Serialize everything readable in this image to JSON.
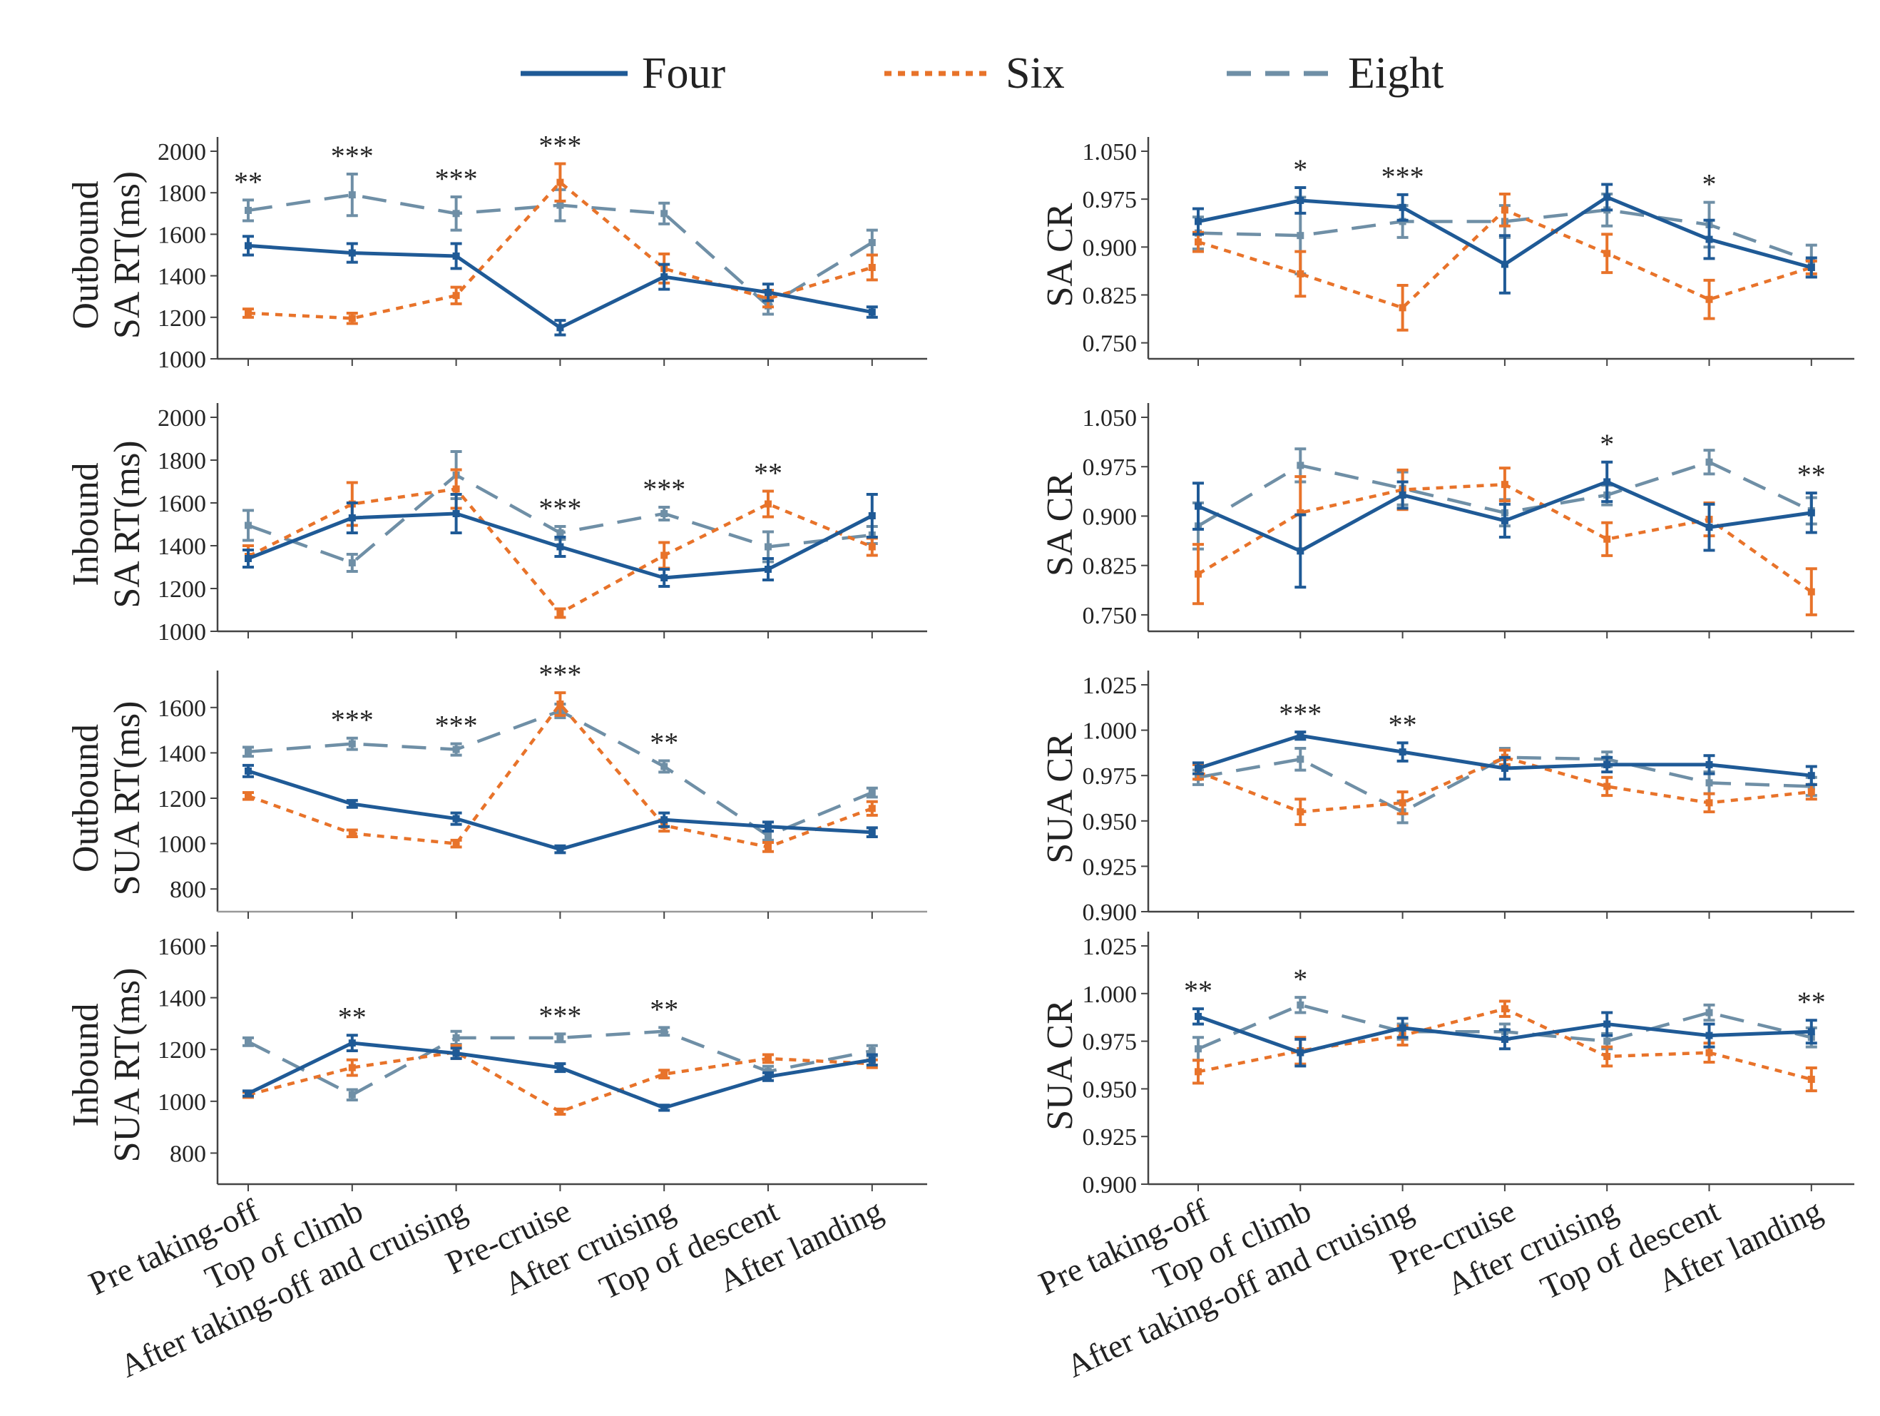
{
  "legend": [
    {
      "name": "Four",
      "color": "#1f5a96",
      "style": "solid"
    },
    {
      "name": "Six",
      "color": "#e8732a",
      "style": "dotted"
    },
    {
      "name": "Eight",
      "color": "#6f8fa6",
      "style": "dashed"
    }
  ],
  "categories": [
    "Pre taking-off",
    "Top of climb",
    "After taking-off and cruising",
    "Pre-cruise",
    "After cruising",
    "Top of descent",
    "After landing"
  ],
  "chart_data": [
    {
      "type": "line",
      "panel": "left-1",
      "ylabel": [
        "Outbound",
        "SA RT(ms)"
      ],
      "ylim": [
        1000,
        2000
      ],
      "yticks": [
        1000,
        1200,
        1400,
        1600,
        1800,
        2000
      ],
      "tick_decimals": 0,
      "series": [
        {
          "name": "Four",
          "values": [
            1545,
            1510,
            1495,
            1150,
            1395,
            1320,
            1225
          ],
          "errors": [
            45,
            45,
            60,
            35,
            60,
            40,
            25
          ]
        },
        {
          "name": "Six",
          "values": [
            1220,
            1195,
            1305,
            1850,
            1435,
            1290,
            1440
          ],
          "errors": [
            20,
            25,
            40,
            90,
            70,
            40,
            60
          ]
        },
        {
          "name": "Eight",
          "values": [
            1715,
            1790,
            1700,
            1740,
            1700,
            1255,
            1560
          ],
          "errors": [
            50,
            100,
            80,
            75,
            50,
            40,
            60
          ]
        }
      ],
      "significance": [
        "**",
        "***",
        "***",
        "***",
        "",
        "",
        ""
      ]
    },
    {
      "type": "line",
      "panel": "left-2",
      "ylabel": [
        "Inbound",
        "SA RT(ms)"
      ],
      "ylim": [
        1000,
        2000
      ],
      "yticks": [
        1000,
        1200,
        1400,
        1600,
        1800,
        2000
      ],
      "tick_decimals": 0,
      "series": [
        {
          "name": "Four",
          "values": [
            1340,
            1530,
            1550,
            1395,
            1250,
            1290,
            1540
          ],
          "errors": [
            40,
            70,
            90,
            45,
            40,
            50,
            100
          ]
        },
        {
          "name": "Six",
          "values": [
            1350,
            1595,
            1665,
            1085,
            1355,
            1595,
            1395
          ],
          "errors": [
            50,
            100,
            90,
            20,
            60,
            60,
            40
          ]
        },
        {
          "name": "Eight",
          "values": [
            1495,
            1320,
            1730,
            1460,
            1550,
            1395,
            1450
          ],
          "errors": [
            70,
            40,
            110,
            30,
            30,
            70,
            40
          ]
        }
      ],
      "significance": [
        "",
        "",
        "",
        "***",
        "***",
        "**",
        ""
      ]
    },
    {
      "type": "line",
      "panel": "left-3",
      "ylabel": [
        "Outbound",
        "SUA RT(ms)"
      ],
      "ylim": [
        700,
        1700
      ],
      "yticks": [
        800,
        1000,
        1200,
        1400,
        1600
      ],
      "tick_decimals": 0,
      "series": [
        {
          "name": "Four",
          "values": [
            1320,
            1175,
            1110,
            975,
            1105,
            1075,
            1050
          ],
          "errors": [
            25,
            15,
            25,
            15,
            30,
            20,
            20
          ]
        },
        {
          "name": "Six",
          "values": [
            1210,
            1045,
            1000,
            1615,
            1080,
            985,
            1155
          ],
          "errors": [
            15,
            15,
            15,
            50,
            25,
            20,
            30
          ]
        },
        {
          "name": "Eight",
          "values": [
            1405,
            1440,
            1415,
            1585,
            1340,
            1035,
            1225
          ],
          "errors": [
            20,
            25,
            25,
            30,
            25,
            20,
            20
          ]
        }
      ],
      "significance": [
        "",
        "***",
        "***",
        "***",
        "**",
        "",
        ""
      ]
    },
    {
      "type": "line",
      "panel": "left-4",
      "ylabel": [
        "Inbound",
        "SUA RT(ms)"
      ],
      "ylim": [
        680,
        1600
      ],
      "yticks": [
        800,
        1000,
        1200,
        1400,
        1600
      ],
      "tick_decimals": 0,
      "series": [
        {
          "name": "Four",
          "values": [
            1030,
            1225,
            1185,
            1130,
            975,
            1095,
            1160
          ],
          "errors": [
            10,
            30,
            20,
            15,
            10,
            15,
            20
          ]
        },
        {
          "name": "Six",
          "values": [
            1025,
            1130,
            1190,
            960,
            1105,
            1165,
            1145
          ],
          "errors": [
            10,
            30,
            25,
            10,
            15,
            15,
            15
          ]
        },
        {
          "name": "Eight",
          "values": [
            1230,
            1025,
            1245,
            1245,
            1270,
            1115,
            1195
          ],
          "errors": [
            15,
            20,
            25,
            15,
            15,
            20,
            20
          ]
        }
      ],
      "significance": [
        "",
        "**",
        "",
        "***",
        "**",
        "",
        ""
      ]
    },
    {
      "type": "line",
      "panel": "right-1",
      "ylabel": [
        "SA CR"
      ],
      "ylim": [
        0.725,
        1.05
      ],
      "yticks": [
        0.75,
        0.825,
        0.9,
        0.975,
        1.05
      ],
      "tick_decimals": 3,
      "series": [
        {
          "name": "Four",
          "values": [
            0.94,
            0.973,
            0.962,
            0.873,
            0.978,
            0.912,
            0.868
          ],
          "errors": [
            0.02,
            0.02,
            0.02,
            0.045,
            0.02,
            0.03,
            0.015
          ]
        },
        {
          "name": "Six",
          "values": [
            0.908,
            0.858,
            0.805,
            0.958,
            0.89,
            0.818,
            0.868
          ],
          "errors": [
            0.015,
            0.035,
            0.035,
            0.025,
            0.03,
            0.03,
            0.01
          ]
        },
        {
          "name": "Eight",
          "values": [
            0.922,
            0.918,
            0.94,
            0.94,
            0.958,
            0.935,
            0.878
          ],
          "errors": [
            0.025,
            0.06,
            0.025,
            0.025,
            0.025,
            0.035,
            0.025
          ]
        }
      ],
      "significance": [
        "",
        "*",
        "***",
        "",
        "",
        "*",
        ""
      ]
    },
    {
      "type": "line",
      "panel": "right-2",
      "ylabel": [
        "SA CR"
      ],
      "ylim": [
        0.725,
        1.05
      ],
      "yticks": [
        0.75,
        0.825,
        0.9,
        0.975,
        1.05
      ],
      "tick_decimals": 3,
      "series": [
        {
          "name": "Four",
          "values": [
            0.915,
            0.847,
            0.932,
            0.893,
            0.952,
            0.883,
            0.905
          ],
          "errors": [
            0.035,
            0.055,
            0.02,
            0.025,
            0.03,
            0.035,
            0.03
          ]
        },
        {
          "name": "Six",
          "values": [
            0.812,
            0.905,
            0.94,
            0.948,
            0.865,
            0.895,
            0.785
          ],
          "errors": [
            0.045,
            0.055,
            0.03,
            0.025,
            0.025,
            0.025,
            0.035
          ]
        },
        {
          "name": "Eight",
          "values": [
            0.885,
            0.977,
            0.942,
            0.905,
            0.932,
            0.982,
            0.908
          ],
          "errors": [
            0.035,
            0.025,
            0.025,
            0.02,
            0.015,
            0.018,
            0.02
          ]
        }
      ],
      "significance": [
        "",
        "",
        "",
        "",
        "*",
        "",
        "**"
      ]
    },
    {
      "type": "line",
      "panel": "right-3",
      "ylabel": [
        "SUA CR"
      ],
      "ylim": [
        0.9,
        1.025
      ],
      "yticks": [
        0.9,
        0.925,
        0.95,
        0.975,
        1.0,
        1.025
      ],
      "tick_decimals": 3,
      "series": [
        {
          "name": "Four",
          "values": [
            0.979,
            0.997,
            0.988,
            0.979,
            0.981,
            0.981,
            0.975
          ],
          "errors": [
            0.003,
            0.002,
            0.005,
            0.006,
            0.004,
            0.005,
            0.005
          ]
        },
        {
          "name": "Six",
          "values": [
            0.977,
            0.955,
            0.96,
            0.985,
            0.969,
            0.96,
            0.966
          ],
          "errors": [
            0.004,
            0.007,
            0.006,
            0.004,
            0.005,
            0.005,
            0.004
          ]
        },
        {
          "name": "Eight",
          "values": [
            0.974,
            0.984,
            0.955,
            0.985,
            0.984,
            0.971,
            0.969
          ],
          "errors": [
            0.004,
            0.006,
            0.006,
            0.005,
            0.004,
            0.006,
            0.005
          ]
        }
      ],
      "significance": [
        "",
        "***",
        "**",
        "",
        "",
        "",
        ""
      ]
    },
    {
      "type": "line",
      "panel": "right-4",
      "ylabel": [
        "SUA CR"
      ],
      "ylim": [
        0.9,
        1.025
      ],
      "yticks": [
        0.9,
        0.925,
        0.95,
        0.975,
        1.0,
        1.025
      ],
      "tick_decimals": 3,
      "series": [
        {
          "name": "Four",
          "values": [
            0.988,
            0.969,
            0.982,
            0.976,
            0.984,
            0.978,
            0.98
          ],
          "errors": [
            0.004,
            0.007,
            0.005,
            0.005,
            0.006,
            0.006,
            0.006
          ]
        },
        {
          "name": "Six",
          "values": [
            0.959,
            0.97,
            0.978,
            0.992,
            0.967,
            0.969,
            0.955
          ],
          "errors": [
            0.006,
            0.007,
            0.005,
            0.004,
            0.005,
            0.005,
            0.006
          ]
        },
        {
          "name": "Eight",
          "values": [
            0.971,
            0.994,
            0.98,
            0.98,
            0.975,
            0.99,
            0.977
          ],
          "errors": [
            0.006,
            0.004,
            0.004,
            0.004,
            0.004,
            0.004,
            0.005
          ]
        }
      ],
      "significance": [
        "**",
        "*",
        "",
        "",
        "",
        "",
        "**"
      ]
    }
  ]
}
